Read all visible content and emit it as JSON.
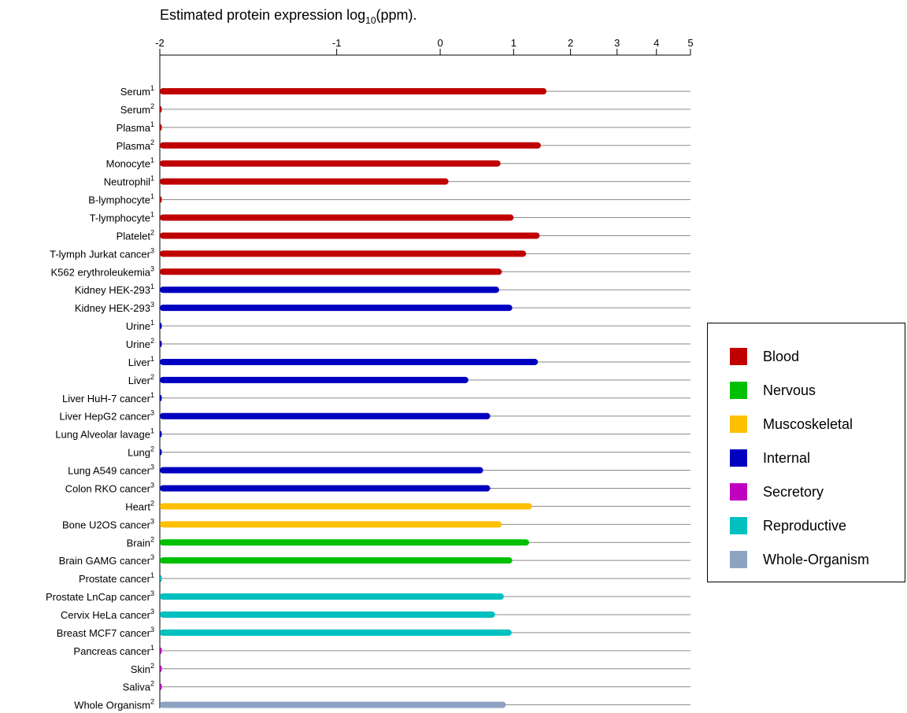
{
  "chart_data": {
    "type": "bar",
    "orientation": "horizontal",
    "title": "Estimated protein expression log",
    "title_subscript": "10",
    "title_suffix": "(ppm).",
    "x_ticks": [
      "-2",
      "-1",
      "0",
      "1",
      "2",
      "3",
      "4",
      "5"
    ],
    "grid": true,
    "legend_position": "right",
    "categories": [
      {
        "label": "Serum",
        "sup": "1",
        "value": 1.55,
        "group": "Blood"
      },
      {
        "label": "Serum",
        "sup": "2",
        "value": -2,
        "group": "Blood"
      },
      {
        "label": "Plasma",
        "sup": "1",
        "value": -2,
        "group": "Blood"
      },
      {
        "label": "Plasma",
        "sup": "2",
        "value": 1.45,
        "group": "Blood"
      },
      {
        "label": "Monocyte",
        "sup": "1",
        "value": 0.8,
        "group": "Blood"
      },
      {
        "label": "Neutrophil",
        "sup": "1",
        "value": 0.1,
        "group": "Blood"
      },
      {
        "label": "B-lymphocyte",
        "sup": "1",
        "value": -2,
        "group": "Blood"
      },
      {
        "label": "T-lymphocyte",
        "sup": "1",
        "value": 1.0,
        "group": "Blood"
      },
      {
        "label": "Platelet",
        "sup": "2",
        "value": 1.43,
        "group": "Blood"
      },
      {
        "label": "T-lymph Jurkat cancer",
        "sup": "3",
        "value": 1.2,
        "group": "Blood"
      },
      {
        "label": "K562 erythroleukemia",
        "sup": "3",
        "value": 0.82,
        "group": "Blood"
      },
      {
        "label": "Kidney HEK-293",
        "sup": "1",
        "value": 0.78,
        "group": "Internal"
      },
      {
        "label": "Kidney HEK-293",
        "sup": "3",
        "value": 0.98,
        "group": "Internal"
      },
      {
        "label": "Urine",
        "sup": "1",
        "value": -2,
        "group": "Internal"
      },
      {
        "label": "Urine",
        "sup": "2",
        "value": -2,
        "group": "Internal"
      },
      {
        "label": "Liver",
        "sup": "1",
        "value": 1.4,
        "group": "Internal"
      },
      {
        "label": "Liver",
        "sup": "2",
        "value": 0.35,
        "group": "Internal"
      },
      {
        "label": "Liver HuH-7 cancer",
        "sup": "1",
        "value": -2,
        "group": "Internal"
      },
      {
        "label": "Liver HepG2 cancer",
        "sup": "3",
        "value": 0.65,
        "group": "Internal"
      },
      {
        "label": "Lung Alveolar lavage",
        "sup": "1",
        "value": -2,
        "group": "Internal"
      },
      {
        "label": "Lung",
        "sup": "2",
        "value": -2,
        "group": "Internal"
      },
      {
        "label": "Lung A549 cancer",
        "sup": "3",
        "value": 0.55,
        "group": "Internal"
      },
      {
        "label": "Colon RKO cancer",
        "sup": "3",
        "value": 0.65,
        "group": "Internal"
      },
      {
        "label": "Heart",
        "sup": "2",
        "value": 1.3,
        "group": "Muscoskeletal"
      },
      {
        "label": "Bone U2OS cancer",
        "sup": "3",
        "value": 0.82,
        "group": "Muscoskeletal"
      },
      {
        "label": "Brain",
        "sup": "2",
        "value": 1.25,
        "group": "Nervous"
      },
      {
        "label": "Brain GAMG cancer",
        "sup": "3",
        "value": 0.98,
        "group": "Nervous"
      },
      {
        "label": "Prostate cancer",
        "sup": "1",
        "value": -2,
        "group": "Reproductive"
      },
      {
        "label": "Prostate LnCap cancer",
        "sup": "3",
        "value": 0.85,
        "group": "Reproductive"
      },
      {
        "label": "Cervix HeLa cancer",
        "sup": "3",
        "value": 0.72,
        "group": "Reproductive"
      },
      {
        "label": "Breast MCF7 cancer",
        "sup": "3",
        "value": 0.97,
        "group": "Reproductive"
      },
      {
        "label": "Pancreas cancer",
        "sup": "1",
        "value": -2,
        "group": "Secretory"
      },
      {
        "label": "Skin",
        "sup": "2",
        "value": -2,
        "group": "Secretory"
      },
      {
        "label": "Saliva",
        "sup": "2",
        "value": -2,
        "group": "Secretory"
      },
      {
        "label": "Whole Organism",
        "sup": "2",
        "value": 0.88,
        "group": "Whole-Organism"
      }
    ],
    "legend": [
      {
        "name": "Blood",
        "color": "#c00000"
      },
      {
        "name": "Nervous",
        "color": "#00c000"
      },
      {
        "name": "Muscoskeletal",
        "color": "#ffc000"
      },
      {
        "name": "Internal",
        "color": "#0000c0"
      },
      {
        "name": "Secretory",
        "color": "#c000c0"
      },
      {
        "name": "Reproductive",
        "color": "#00c0c0"
      },
      {
        "name": "Whole-Organism",
        "color": "#8ea3c2"
      }
    ]
  }
}
